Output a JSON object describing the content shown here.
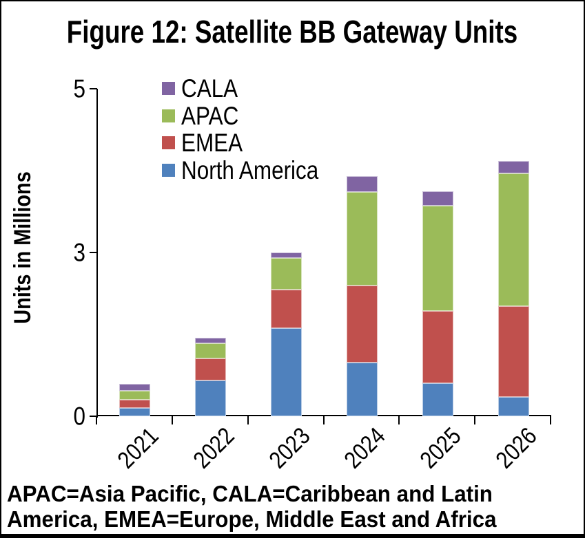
{
  "title": "Figure 12: Satellite BB Gateway Units",
  "footnote": {
    "line1": "APAC=Asia Pacific, CALA=Caribbean and Latin",
    "line2": "America, EMEA=Europe, Middle East and Africa"
  },
  "chart_data": {
    "type": "bar",
    "stacked": true,
    "title": "Figure 12: Satellite BB Gateway Units",
    "xlabel": "",
    "ylabel": "Units in Millions",
    "categories": [
      "2021",
      "2022",
      "2023",
      "2024",
      "2025",
      "2026"
    ],
    "series": [
      {
        "name": "North America",
        "color": "#4F81BD",
        "values": [
          0.13,
          0.55,
          1.34,
          0.82,
          0.5,
          0.29
        ]
      },
      {
        "name": "EMEA",
        "color": "#C0504D",
        "values": [
          0.12,
          0.33,
          0.59,
          1.18,
          1.11,
          1.39
        ]
      },
      {
        "name": "APAC",
        "color": "#9BBB59",
        "values": [
          0.14,
          0.23,
          0.49,
          1.43,
          1.6,
          2.03
        ]
      },
      {
        "name": "CALA",
        "color": "#8064A2",
        "values": [
          0.1,
          0.09,
          0.08,
          0.24,
          0.23,
          0.19
        ]
      }
    ],
    "totals": [
      0.49,
      1.2,
      2.5,
      3.67,
      3.44,
      3.9
    ],
    "ylim": [
      0,
      5
    ],
    "yticks": [
      {
        "value": 0,
        "label": "0"
      },
      {
        "value": 2.5,
        "label": "3"
      },
      {
        "value": 5,
        "label": "5"
      }
    ],
    "grid": false,
    "legend_position": "top-left-inside",
    "legend_order": [
      "CALA",
      "APAC",
      "EMEA",
      "North America"
    ],
    "bar_stack_order_bottom_to_top": [
      "North America",
      "EMEA",
      "APAC",
      "CALA"
    ]
  }
}
